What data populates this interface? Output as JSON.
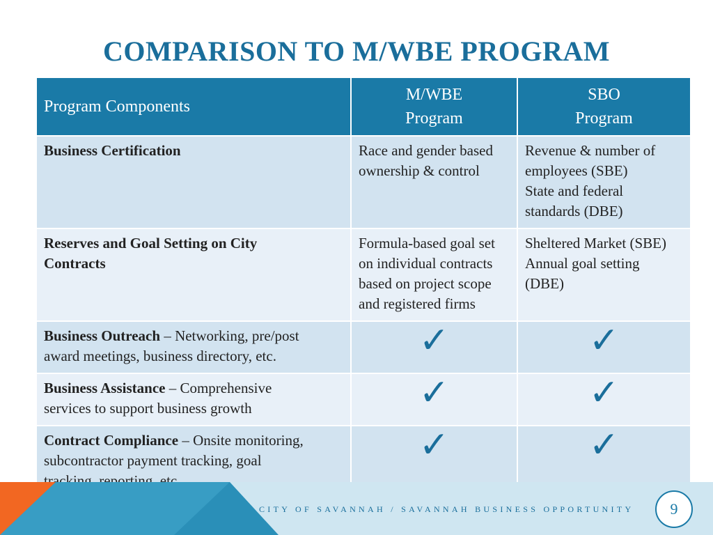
{
  "slide": {
    "title": "COMPARISON TO M/WBE PROGRAM",
    "footer_text": "CITY OF SAVANNAH / SAVANNAH BUSINESS OPPORTUNITY",
    "page_number": "9"
  },
  "table": {
    "header": {
      "components": "Program Components",
      "mwbe_line1": "M/WBE",
      "mwbe_line2": "Program",
      "sbo_line1": "SBO",
      "sbo_line2": "Program"
    },
    "rows": [
      {
        "label_bold": "Business Certification",
        "mwbe_lines": [
          "Race and gender based",
          "ownership & control"
        ],
        "sbo_lines": [
          "Revenue & number of",
          "employees (SBE)",
          "State and federal",
          "standards (DBE)"
        ]
      },
      {
        "label_bold_1": "Reserves and Goal Setting on City",
        "label_bold_2": "Contracts",
        "mwbe_lines": [
          "Formula-based goal set",
          "on individual contracts",
          "based on project scope",
          "and registered firms"
        ],
        "sbo_lines": [
          "Sheltered Market (SBE)",
          "Annual goal setting",
          "(DBE)"
        ]
      },
      {
        "label_bold": "Business Outreach",
        "label_rest_1": " – Networking, pre/post",
        "label_rest_2": "award meetings, business directory, etc.",
        "mwbe_check": "✓",
        "sbo_check": "✓"
      },
      {
        "label_bold": "Business Assistance",
        "label_rest_1": " – Comprehensive",
        "label_rest_2": "services to support business growth",
        "mwbe_check": "✓",
        "sbo_check": "✓"
      },
      {
        "label_bold": "Contract Compliance",
        "label_rest_1": " – Onsite monitoring,",
        "label_rest_2": "subcontractor payment tracking, goal",
        "label_rest_3": "tracking, reporting, etc.",
        "mwbe_check": "✓",
        "sbo_check": "✓"
      }
    ]
  },
  "colors": {
    "title": "#1a6e9b",
    "header_bg": "#1a7aa7",
    "row_dark": "#d2e3f0",
    "row_light": "#e8f0f8",
    "footer_orange": "#f26722",
    "footer_teal": "#2a8fb8",
    "footer_light": "#7fc4e0"
  }
}
